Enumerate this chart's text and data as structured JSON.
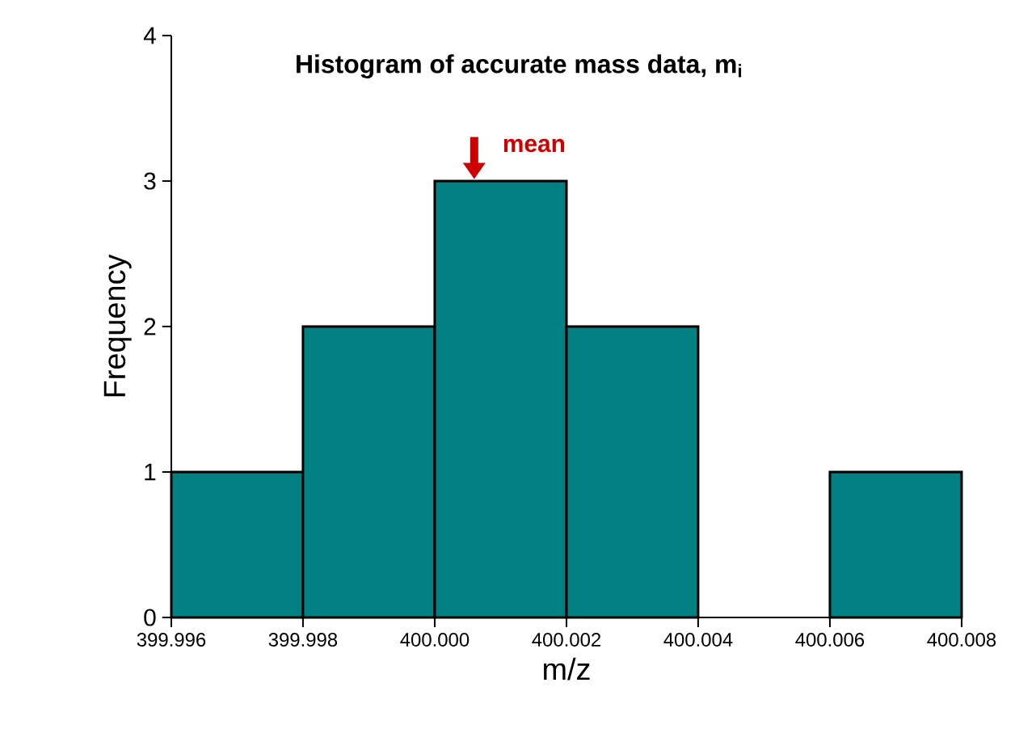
{
  "chart_data": {
    "type": "histogram",
    "title": "Histogram of accurate mass data, m$_{i}$",
    "xlabel": "m/z",
    "ylabel": "Frequency",
    "bins": [
      399.996,
      399.998,
      400.0,
      400.002,
      400.004,
      400.006,
      400.008
    ],
    "values": [
      1,
      2,
      3,
      2,
      0,
      1
    ],
    "color": "#008080",
    "xlim": [
      399.996,
      400.008
    ],
    "xticks": [
      {
        "value": 399.996,
        "label": "399.996"
      },
      {
        "value": 399.998,
        "label": "399.998"
      },
      {
        "value": 400.0,
        "label": "400.000"
      },
      {
        "value": 400.002,
        "label": "400.002"
      },
      {
        "value": 400.004,
        "label": "400.004"
      },
      {
        "value": 400.006,
        "label": "400.006"
      },
      {
        "value": 400.008,
        "label": "400.008"
      }
    ],
    "ylim": [
      0,
      4
    ],
    "yticks": [
      0,
      1,
      2,
      3,
      4
    ],
    "annotations": [
      {
        "text": "mean",
        "x": 400.0006,
        "y": 3
      }
    ]
  }
}
